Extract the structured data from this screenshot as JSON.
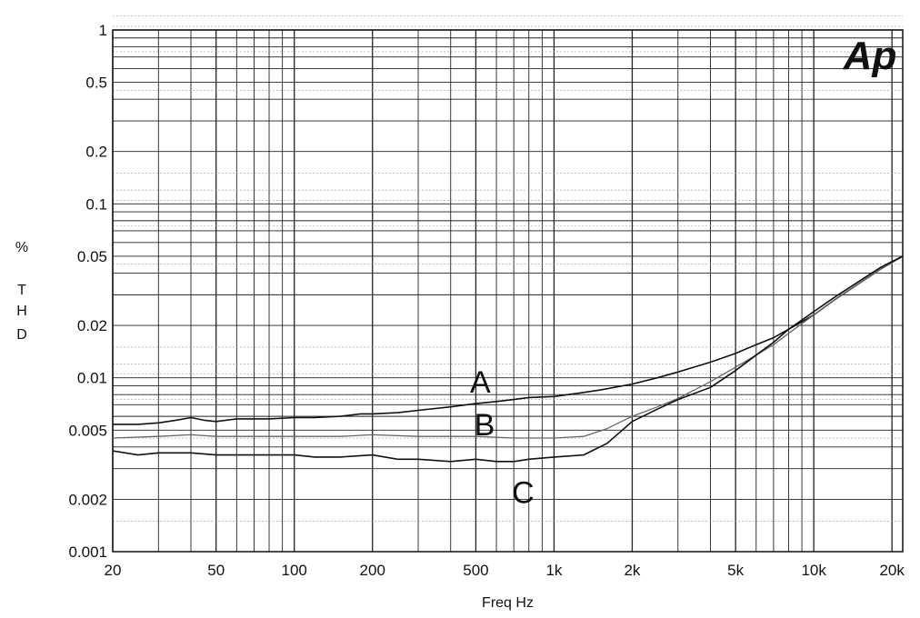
{
  "chart_data": {
    "type": "line",
    "title": "",
    "xlabel": "Freq Hz",
    "ylabel": [
      "%",
      "T",
      "H",
      "D"
    ],
    "xscale": "log",
    "yscale": "log",
    "xlim": [
      20,
      22000
    ],
    "ylim": [
      0.001,
      1
    ],
    "grid": true,
    "logo": "Ap",
    "x_ticks": [
      {
        "v": 20,
        "label": "20"
      },
      {
        "v": 50,
        "label": "50"
      },
      {
        "v": 100,
        "label": "100"
      },
      {
        "v": 200,
        "label": "200"
      },
      {
        "v": 500,
        "label": "500"
      },
      {
        "v": 1000,
        "label": "1k"
      },
      {
        "v": 2000,
        "label": "2k"
      },
      {
        "v": 5000,
        "label": "5k"
      },
      {
        "v": 10000,
        "label": "10k"
      },
      {
        "v": 20000,
        "label": "20k"
      }
    ],
    "y_ticks": [
      {
        "v": 1,
        "label": "1"
      },
      {
        "v": 0.5,
        "label": "0.5"
      },
      {
        "v": 0.2,
        "label": "0.2"
      },
      {
        "v": 0.1,
        "label": "0.1"
      },
      {
        "v": 0.05,
        "label": "0.05"
      },
      {
        "v": 0.02,
        "label": "0.02"
      },
      {
        "v": 0.01,
        "label": "0.01"
      },
      {
        "v": 0.005,
        "label": "0.005"
      },
      {
        "v": 0.002,
        "label": "0.002"
      },
      {
        "v": 0.001,
        "label": "0.001"
      }
    ],
    "series": [
      {
        "name": "A",
        "color": "#111111",
        "label_at": [
          520,
          0.0095
        ],
        "x": [
          20,
          25,
          30,
          35,
          40,
          45,
          50,
          60,
          70,
          80,
          100,
          120,
          150,
          180,
          200,
          250,
          300,
          400,
          500,
          600,
          700,
          800,
          1000,
          1200,
          1500,
          2000,
          2500,
          3000,
          4000,
          5000,
          6000,
          7000,
          8000,
          10000,
          12000,
          15000,
          18000,
          22000
        ],
        "values": [
          0.0054,
          0.0054,
          0.0055,
          0.0057,
          0.0059,
          0.0057,
          0.0056,
          0.0058,
          0.0058,
          0.0058,
          0.0059,
          0.0059,
          0.006,
          0.0062,
          0.0062,
          0.0063,
          0.0065,
          0.0068,
          0.0071,
          0.0073,
          0.0075,
          0.0077,
          0.0078,
          0.0081,
          0.0085,
          0.0092,
          0.01,
          0.0108,
          0.0123,
          0.0138,
          0.0155,
          0.017,
          0.019,
          0.023,
          0.028,
          0.035,
          0.042,
          0.05
        ]
      },
      {
        "name": "B",
        "color": "#666666",
        "label_at": [
          540,
          0.0054
        ],
        "x": [
          20,
          30,
          40,
          50,
          70,
          100,
          150,
          200,
          300,
          400,
          500,
          700,
          1000,
          1300,
          1600,
          2000,
          2500,
          3000,
          4000,
          5000,
          6000,
          7000,
          8000,
          10000,
          12000,
          15000,
          18000,
          22000
        ],
        "values": [
          0.0045,
          0.0046,
          0.0047,
          0.0046,
          0.0046,
          0.0046,
          0.0046,
          0.0047,
          0.0046,
          0.0046,
          0.0046,
          0.0045,
          0.0045,
          0.0046,
          0.0051,
          0.006,
          0.0068,
          0.0076,
          0.0095,
          0.0115,
          0.0135,
          0.0155,
          0.018,
          0.023,
          0.028,
          0.035,
          0.042,
          0.05
        ]
      },
      {
        "name": "C",
        "color": "#111111",
        "label_at": [
          760,
          0.0022
        ],
        "x": [
          20,
          25,
          30,
          40,
          50,
          60,
          80,
          100,
          120,
          150,
          200,
          250,
          300,
          400,
          500,
          600,
          700,
          800,
          1000,
          1300,
          1600,
          2000,
          2500,
          3000,
          4000,
          5000,
          6000,
          7000,
          8000,
          10000,
          12000,
          15000,
          18000,
          22000
        ],
        "values": [
          0.0038,
          0.0036,
          0.0037,
          0.0037,
          0.0036,
          0.0036,
          0.0036,
          0.0036,
          0.0035,
          0.0035,
          0.0036,
          0.0034,
          0.0034,
          0.0033,
          0.0034,
          0.0033,
          0.0033,
          0.0034,
          0.0035,
          0.0036,
          0.0042,
          0.0056,
          0.0066,
          0.0075,
          0.0088,
          0.011,
          0.0135,
          0.016,
          0.019,
          0.024,
          0.029,
          0.036,
          0.043,
          0.05
        ]
      }
    ]
  }
}
